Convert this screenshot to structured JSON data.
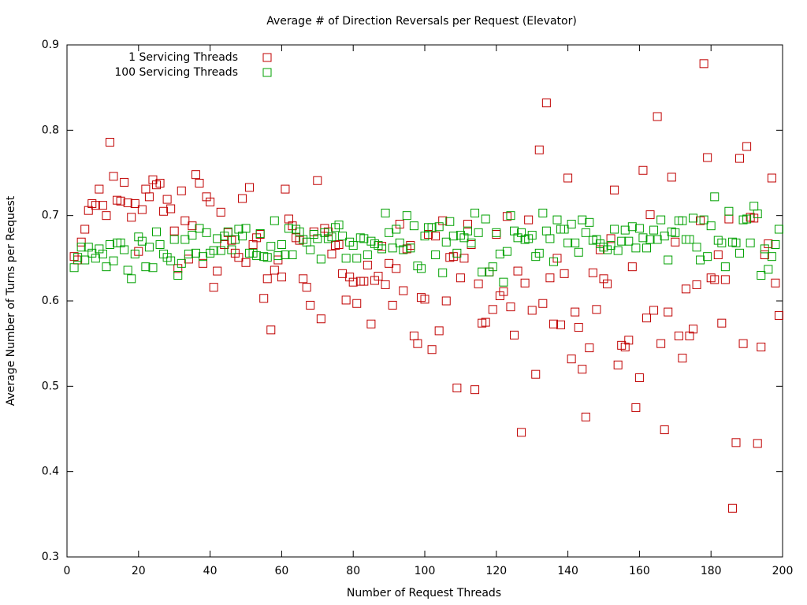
{
  "chart_data": {
    "type": "scatter",
    "title": "Average # of Direction Reversals per Request (Elevator)",
    "xlabel": "Number of Request Threads",
    "ylabel": "Average Number of Turns per Request",
    "xlim": [
      0,
      200
    ],
    "xticks": [
      0,
      20,
      40,
      60,
      80,
      100,
      120,
      140,
      160,
      180,
      200
    ],
    "ylim": [
      0.3,
      0.9
    ],
    "yticks": [
      0.3,
      0.4,
      0.5,
      0.6,
      0.7,
      0.8,
      0.9
    ],
    "legend": "top-left",
    "x": [
      2,
      3,
      4,
      5,
      6,
      7,
      8,
      9,
      10,
      11,
      12,
      13,
      14,
      15,
      16,
      17,
      18,
      19,
      20,
      21,
      22,
      23,
      24,
      25,
      26,
      27,
      28,
      29,
      30,
      31,
      32,
      33,
      34,
      35,
      36,
      37,
      38,
      39,
      40,
      41,
      42,
      43,
      44,
      45,
      46,
      47,
      48,
      49,
      50,
      51,
      52,
      53,
      54,
      55,
      56,
      57,
      58,
      59,
      60,
      61,
      62,
      63,
      64,
      65,
      66,
      67,
      68,
      69,
      70,
      71,
      72,
      73,
      74,
      75,
      76,
      77,
      78,
      79,
      80,
      81,
      82,
      83,
      84,
      85,
      86,
      87,
      88,
      89,
      90,
      91,
      92,
      93,
      94,
      95,
      96,
      97,
      98,
      99,
      100,
      101,
      102,
      103,
      104,
      105,
      106,
      107,
      108,
      109,
      110,
      111,
      112,
      113,
      114,
      115,
      116,
      117,
      118,
      119,
      120,
      121,
      122,
      123,
      124,
      125,
      126,
      127,
      128,
      129,
      130,
      131,
      132,
      133,
      134,
      135,
      136,
      137,
      138,
      139,
      140,
      141,
      142,
      143,
      144,
      145,
      146,
      147,
      148,
      149,
      150,
      151,
      152,
      153,
      154,
      155,
      156,
      157,
      158,
      159,
      160,
      161,
      162,
      163,
      164,
      165,
      166,
      167,
      168,
      169,
      170,
      171,
      172,
      173,
      174,
      175,
      176,
      177,
      178,
      179,
      180,
      181,
      182,
      183,
      184,
      185,
      186,
      187,
      188,
      189,
      190,
      191,
      192,
      193,
      194,
      195,
      196,
      197,
      198,
      199
    ],
    "series": [
      {
        "name": "1 Servicing Threads",
        "color": "#c00000",
        "values": [
          0.652,
          0.648,
          0.669,
          0.684,
          0.706,
          0.714,
          0.712,
          0.731,
          0.712,
          0.7,
          0.786,
          0.746,
          0.718,
          0.717,
          0.739,
          0.715,
          0.698,
          0.714,
          0.658,
          0.707,
          0.731,
          0.722,
          0.742,
          0.736,
          0.738,
          0.705,
          0.719,
          0.708,
          0.682,
          0.638,
          0.729,
          0.694,
          0.649,
          0.688,
          0.748,
          0.738,
          0.644,
          0.722,
          0.716,
          0.616,
          0.635,
          0.704,
          0.666,
          0.68,
          0.671,
          0.656,
          0.651,
          0.72,
          0.645,
          0.733,
          0.666,
          0.674,
          0.678,
          0.603,
          0.626,
          0.566,
          0.636,
          0.648,
          0.628,
          0.731,
          0.696,
          0.688,
          0.674,
          0.671,
          0.626,
          0.616,
          0.595,
          0.681,
          0.741,
          0.579,
          0.685,
          0.681,
          0.655,
          0.665,
          0.666,
          0.632,
          0.601,
          0.628,
          0.622,
          0.597,
          0.623,
          0.623,
          0.642,
          0.573,
          0.624,
          0.629,
          0.664,
          0.619,
          0.644,
          0.595,
          0.638,
          0.69,
          0.612,
          0.661,
          0.665,
          0.559,
          0.55,
          0.604,
          0.602,
          0.678,
          0.543,
          0.676,
          0.565,
          0.694,
          0.6,
          0.651,
          0.652,
          0.498,
          0.627,
          0.65,
          0.69,
          0.666,
          0.496,
          0.62,
          0.574,
          0.575,
          0.634,
          0.59,
          0.678,
          0.606,
          0.611,
          0.699,
          0.593,
          0.56,
          0.635,
          0.446,
          0.621,
          0.695,
          0.589,
          0.514,
          0.777,
          0.597,
          0.832,
          0.627,
          0.573,
          0.65,
          0.572,
          0.632,
          0.744,
          0.532,
          0.587,
          0.569,
          0.52,
          0.464,
          0.545,
          0.633,
          0.59,
          0.66,
          0.626,
          0.62,
          0.673,
          0.73,
          0.525,
          0.548,
          0.546,
          0.554,
          0.64,
          0.475,
          0.51,
          0.753,
          0.58,
          0.701,
          0.589,
          0.816,
          0.55,
          0.449,
          0.587,
          0.745,
          0.669,
          0.559,
          0.533,
          0.614,
          0.559,
          0.567,
          0.619,
          0.694,
          0.878,
          0.768,
          0.627,
          0.625,
          0.654,
          0.574,
          0.625,
          0.696,
          0.357,
          0.434,
          0.767,
          0.55,
          0.781,
          0.698,
          0.697,
          0.433,
          0.546,
          0.654,
          0.667,
          0.744,
          0.621,
          0.583
        ]
      },
      {
        "name": "100 Servicing Threads",
        "color": "#00a000",
        "values": [
          0.639,
          0.651,
          0.663,
          0.648,
          0.663,
          0.656,
          0.65,
          0.661,
          0.655,
          0.64,
          0.666,
          0.647,
          0.668,
          0.668,
          0.66,
          0.636,
          0.626,
          0.655,
          0.675,
          0.67,
          0.64,
          0.663,
          0.639,
          0.681,
          0.666,
          0.655,
          0.651,
          0.647,
          0.672,
          0.63,
          0.644,
          0.672,
          0.655,
          0.677,
          0.656,
          0.685,
          0.652,
          0.68,
          0.656,
          0.659,
          0.673,
          0.659,
          0.676,
          0.681,
          0.66,
          0.672,
          0.684,
          0.676,
          0.685,
          0.656,
          0.656,
          0.653,
          0.679,
          0.652,
          0.651,
          0.664,
          0.694,
          0.653,
          0.666,
          0.654,
          0.685,
          0.654,
          0.684,
          0.681,
          0.672,
          0.669,
          0.66,
          0.678,
          0.673,
          0.649,
          0.68,
          0.673,
          0.675,
          0.686,
          0.689,
          0.676,
          0.65,
          0.669,
          0.665,
          0.65,
          0.674,
          0.673,
          0.654,
          0.67,
          0.667,
          0.665,
          0.661,
          0.703,
          0.68,
          0.662,
          0.684,
          0.668,
          0.66,
          0.7,
          0.662,
          0.688,
          0.641,
          0.638,
          0.676,
          0.686,
          0.686,
          0.654,
          0.687,
          0.633,
          0.669,
          0.693,
          0.676,
          0.656,
          0.677,
          0.674,
          0.682,
          0.668,
          0.703,
          0.68,
          0.634,
          0.696,
          0.634,
          0.64,
          0.68,
          0.655,
          0.622,
          0.658,
          0.7,
          0.682,
          0.674,
          0.68,
          0.672,
          0.673,
          0.677,
          0.652,
          0.656,
          0.703,
          0.682,
          0.673,
          0.646,
          0.695,
          0.684,
          0.684,
          0.668,
          0.69,
          0.668,
          0.657,
          0.695,
          0.68,
          0.692,
          0.671,
          0.672,
          0.667,
          0.663,
          0.66,
          0.665,
          0.684,
          0.659,
          0.67,
          0.683,
          0.67,
          0.687,
          0.662,
          0.685,
          0.674,
          0.662,
          0.672,
          0.683,
          0.672,
          0.695,
          0.676,
          0.648,
          0.681,
          0.68,
          0.694,
          0.694,
          0.672,
          0.672,
          0.697,
          0.663,
          0.648,
          0.695,
          0.652,
          0.688,
          0.722,
          0.671,
          0.668,
          0.64,
          0.705,
          0.669,
          0.668,
          0.656,
          0.695,
          0.696,
          0.668,
          0.711,
          0.702,
          0.63,
          0.661,
          0.637,
          0.652,
          0.666,
          0.684
        ]
      }
    ]
  }
}
